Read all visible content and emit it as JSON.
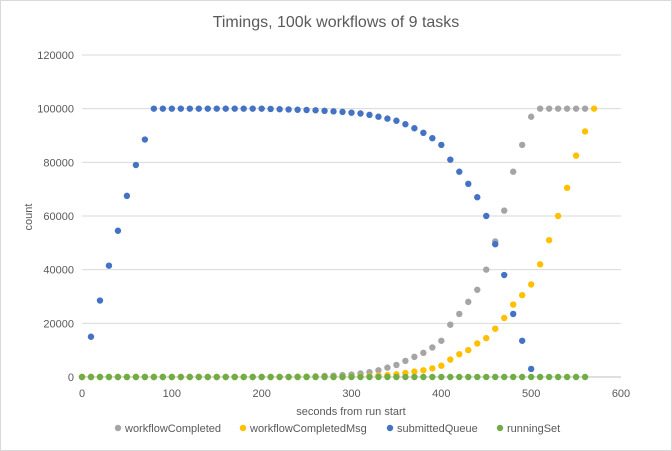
{
  "chart_data": {
    "type": "scatter",
    "title": "Timings,  100k workflows of 9 tasks",
    "xlabel": "seconds from run start",
    "ylabel": "count",
    "xlim": [
      0,
      600
    ],
    "ylim": [
      0,
      120000
    ],
    "xticks": [
      "0",
      "100",
      "200",
      "300",
      "400",
      "500",
      "600"
    ],
    "yticks": [
      "0",
      "20000",
      "40000",
      "60000",
      "80000",
      "100000",
      "120000"
    ],
    "grid": true,
    "legend": "bottom",
    "series": [
      {
        "name": "workflowCompleted",
        "color": "#a5a5a5",
        "x": [
          0,
          10,
          20,
          30,
          40,
          50,
          60,
          70,
          80,
          90,
          100,
          110,
          120,
          130,
          140,
          150,
          160,
          170,
          180,
          190,
          200,
          210,
          220,
          230,
          240,
          250,
          260,
          270,
          280,
          290,
          300,
          310,
          320,
          330,
          340,
          350,
          360,
          370,
          380,
          390,
          400,
          410,
          420,
          430,
          440,
          450,
          460,
          470,
          480,
          490,
          500,
          510,
          520,
          530,
          540,
          550,
          560
        ],
        "y": [
          0,
          0,
          0,
          0,
          0,
          0,
          0,
          0,
          0,
          0,
          0,
          0,
          0,
          0,
          0,
          0,
          0,
          0,
          0,
          0,
          0,
          0,
          0,
          0,
          100,
          150,
          250,
          400,
          500,
          700,
          900,
          1300,
          1800,
          2500,
          3500,
          4500,
          6000,
          7500,
          9000,
          11000,
          13500,
          19500,
          23500,
          28000,
          32500,
          40000,
          50500,
          62000,
          76500,
          86500,
          97000,
          100000,
          100000,
          100000,
          100000,
          100000,
          100000
        ]
      },
      {
        "name": "workflowCompletedMsg",
        "color": "#ffc000",
        "x": [
          0,
          10,
          20,
          30,
          40,
          50,
          60,
          70,
          80,
          90,
          100,
          110,
          120,
          130,
          140,
          150,
          160,
          170,
          180,
          190,
          200,
          210,
          220,
          230,
          240,
          250,
          260,
          270,
          280,
          290,
          300,
          310,
          320,
          330,
          340,
          350,
          360,
          370,
          380,
          390,
          400,
          410,
          420,
          430,
          440,
          450,
          460,
          470,
          480,
          490,
          500,
          510,
          520,
          530,
          540,
          550,
          560,
          570
        ],
        "y": [
          0,
          0,
          0,
          0,
          0,
          0,
          0,
          0,
          0,
          0,
          0,
          0,
          0,
          0,
          0,
          0,
          0,
          0,
          0,
          0,
          0,
          0,
          0,
          0,
          0,
          0,
          0,
          0,
          0,
          0,
          100,
          200,
          300,
          500,
          700,
          1000,
          1500,
          2000,
          2500,
          3200,
          4200,
          6500,
          8500,
          10000,
          12500,
          14500,
          18000,
          22000,
          27000,
          30500,
          34500,
          42000,
          51000,
          60000,
          70500,
          82500,
          91500,
          100000
        ]
      },
      {
        "name": "submittedQueue",
        "color": "#4472c4",
        "x": [
          10,
          20,
          30,
          40,
          50,
          60,
          70,
          80,
          90,
          100,
          110,
          120,
          130,
          140,
          150,
          160,
          170,
          180,
          190,
          200,
          210,
          220,
          230,
          240,
          250,
          260,
          270,
          280,
          290,
          300,
          310,
          320,
          330,
          340,
          350,
          360,
          370,
          380,
          390,
          400,
          410,
          420,
          430,
          440,
          450,
          460,
          470,
          480,
          490,
          500
        ],
        "y": [
          15000,
          28500,
          41500,
          54500,
          67500,
          79000,
          88500,
          100000,
          100000,
          100000,
          100000,
          100000,
          100000,
          100000,
          100000,
          100000,
          100000,
          100000,
          100000,
          100000,
          99900,
          99800,
          99700,
          99600,
          99500,
          99400,
          99200,
          99000,
          98800,
          98500,
          98200,
          97700,
          97000,
          96300,
          95500,
          94200,
          92700,
          91000,
          89000,
          86500,
          81000,
          76500,
          72000,
          67000,
          60000,
          49500,
          38000,
          23500,
          13500,
          3000
        ]
      },
      {
        "name": "runningSet",
        "color": "#70ad47",
        "x": [
          0,
          10,
          20,
          30,
          40,
          50,
          60,
          70,
          80,
          90,
          100,
          110,
          120,
          130,
          140,
          150,
          160,
          170,
          180,
          190,
          200,
          210,
          220,
          230,
          240,
          250,
          260,
          270,
          280,
          290,
          300,
          310,
          320,
          330,
          340,
          350,
          360,
          370,
          380,
          390,
          400,
          410,
          420,
          430,
          440,
          450,
          460,
          470,
          480,
          490,
          500,
          510,
          520,
          530,
          540,
          550,
          560
        ],
        "y": [
          0,
          0,
          0,
          0,
          0,
          0,
          0,
          0,
          0,
          0,
          0,
          0,
          0,
          0,
          0,
          0,
          0,
          0,
          0,
          0,
          0,
          0,
          0,
          0,
          0,
          0,
          0,
          0,
          0,
          0,
          0,
          0,
          0,
          0,
          0,
          0,
          0,
          0,
          0,
          0,
          0,
          0,
          0,
          0,
          0,
          0,
          0,
          0,
          0,
          0,
          0,
          0,
          0,
          0,
          0,
          0,
          0
        ]
      }
    ]
  }
}
